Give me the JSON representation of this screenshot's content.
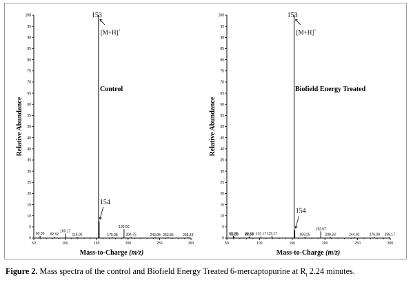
{
  "chart_data": [
    {
      "type": "bar",
      "panel_title": "Control",
      "xlabel": "Mass-to-Charge",
      "xlabel_italic": "(m/z)",
      "ylabel": "Relative Abundance",
      "xlim": [
        50,
        300
      ],
      "ylim": [
        0,
        100
      ],
      "x_ticks": [
        50,
        100,
        150,
        200,
        250,
        300
      ],
      "y_ticks": [
        0,
        5,
        10,
        15,
        20,
        25,
        30,
        35,
        40,
        45,
        50,
        55,
        60,
        65,
        70,
        75,
        80,
        85,
        90,
        95,
        100
      ],
      "base_peak": {
        "mz": 153,
        "label": "153",
        "ion_label": "[M+H]",
        "ion_charge": "+"
      },
      "second_peak": {
        "mz": 154,
        "label": "154"
      },
      "peaks": [
        {
          "mz": 60.0,
          "abundance": 1.0,
          "label": "60.00"
        },
        {
          "mz": 82.92,
          "abundance": 0.6,
          "label": "82.92"
        },
        {
          "mz": 100.17,
          "abundance": 2.0,
          "label": "100.17"
        },
        {
          "mz": 119.0,
          "abundance": 0.5,
          "label": "119.00"
        },
        {
          "mz": 153,
          "abundance": 100,
          "label": ""
        },
        {
          "mz": 154,
          "abundance": 7.5,
          "label": ""
        },
        {
          "mz": 193.5,
          "abundance": 4.0,
          "label": "193.50"
        },
        {
          "mz": 175.08,
          "abundance": 0.3,
          "label": "175.08"
        },
        {
          "mz": 204.75,
          "abundance": 0.5,
          "label": "204.75"
        },
        {
          "mz": 243.08,
          "abundance": 0.3,
          "label": "243.08"
        },
        {
          "mz": 263.83,
          "abundance": 0.3,
          "label": "263.83"
        },
        {
          "mz": 295.33,
          "abundance": 0.3,
          "label": "295.33"
        }
      ]
    },
    {
      "type": "bar",
      "panel_title": "Biofield Energy Treated",
      "xlabel": "Mass-to-Charge",
      "xlabel_italic": "(m/z)",
      "ylabel": "Relative Abundance",
      "xlim": [
        50,
        300
      ],
      "ylim": [
        0,
        100
      ],
      "x_ticks": [
        50,
        100,
        150,
        200,
        250,
        300
      ],
      "y_ticks": [
        0,
        5,
        10,
        15,
        20,
        25,
        30,
        35,
        40,
        45,
        50,
        55,
        60,
        65,
        70,
        75,
        80,
        85,
        90,
        95,
        100
      ],
      "base_peak": {
        "mz": 153,
        "label": "153",
        "ion_label": "[M+H]",
        "ion_charge": "+"
      },
      "second_peak": {
        "mz": 154,
        "label": "154"
      },
      "peaks": [
        {
          "mz": 60.0,
          "abundance": 1.0,
          "label": "60.00"
        },
        {
          "mz": 61.08,
          "abundance": 0.5,
          "label": "61.08"
        },
        {
          "mz": 84.0,
          "abundance": 0.5,
          "label": "84.00"
        },
        {
          "mz": 85.0,
          "abundance": 0.7,
          "label": "85.00"
        },
        {
          "mz": 102.17,
          "abundance": 0.7,
          "label": "102.17"
        },
        {
          "mz": 119.17,
          "abundance": 1.0,
          "label": "119.17"
        },
        {
          "mz": 153,
          "abundance": 100,
          "label": ""
        },
        {
          "mz": 154,
          "abundance": 3.5,
          "label": ""
        },
        {
          "mz": 169.25,
          "abundance": 0.5,
          "label": "169.25"
        },
        {
          "mz": 193.67,
          "abundance": 3.0,
          "label": "193.67"
        },
        {
          "mz": 208.33,
          "abundance": 0.5,
          "label": "208.33"
        },
        {
          "mz": 244.92,
          "abundance": 0.4,
          "label": "244.92"
        },
        {
          "mz": 276.08,
          "abundance": 0.4,
          "label": "276.08"
        },
        {
          "mz": 299.17,
          "abundance": 0.4,
          "label": "299.17"
        }
      ]
    }
  ],
  "caption": {
    "label": "Figure 2.",
    "text_before": " Mass spectra of the control and Biofield Energy Treated 6-mercaptopurine at R",
    "subscript": "t",
    "text_after": " 2.24 minutes."
  }
}
